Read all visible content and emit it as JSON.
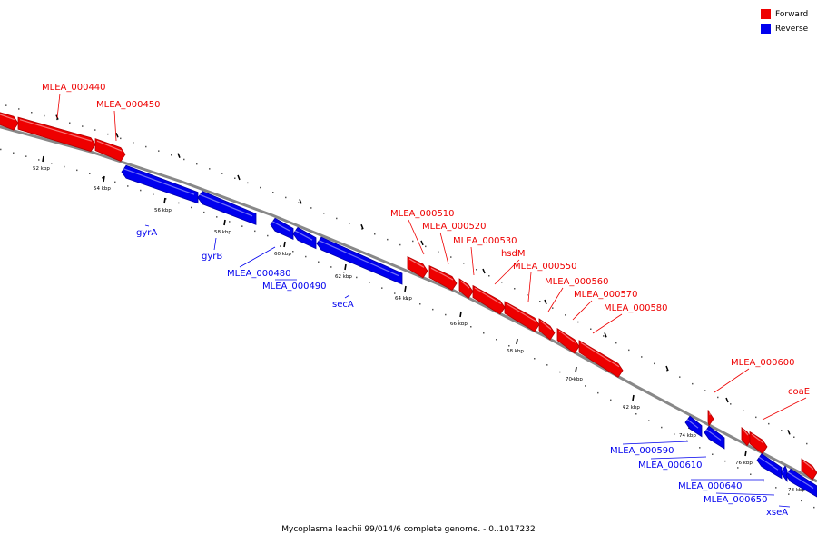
{
  "legend": {
    "forward_label": "Forward",
    "reverse_label": "Reverse",
    "forward_color": "#ee0000",
    "reverse_color": "#0000ee"
  },
  "caption": "Mycoplasma leachii 99/014/6 complete genome. - 0..1017232",
  "colors": {
    "backbone": "#888888",
    "forward": "#ee0000",
    "forward_dark": "#b30000",
    "reverse": "#0000ee",
    "reverse_dark": "#0000a8"
  },
  "scale_ticks": [
    "52 kbp",
    "54 kbp",
    "56 kbp",
    "58 kbp",
    "60 kbp",
    "62 kbp",
    "64 kbp",
    "66 kbp",
    "68 kbp",
    "70 kbp",
    "72 kbp",
    "74 kbp",
    "76 kbp",
    "78 kbp"
  ],
  "forward_genes": [
    {
      "id": "f0",
      "label": ""
    },
    {
      "id": "f1",
      "label": "MLEA_000440"
    },
    {
      "id": "f2",
      "label": "MLEA_000450"
    },
    {
      "id": "f3",
      "label": "MLEA_000510"
    },
    {
      "id": "f4",
      "label": "MLEA_000520"
    },
    {
      "id": "f5",
      "label": "MLEA_000530"
    },
    {
      "id": "f6",
      "label": "hsdM"
    },
    {
      "id": "f7",
      "label": "MLEA_000550"
    },
    {
      "id": "f8",
      "label": "MLEA_000560"
    },
    {
      "id": "f9",
      "label": "MLEA_000570"
    },
    {
      "id": "f10",
      "label": "MLEA_000580"
    },
    {
      "id": "f11",
      "label": "MLEA_000600"
    },
    {
      "id": "f12",
      "label": ""
    },
    {
      "id": "f13",
      "label": "coaE"
    },
    {
      "id": "f14",
      "label": ""
    }
  ],
  "reverse_genes": [
    {
      "id": "r1",
      "label": "gyrA"
    },
    {
      "id": "r2",
      "label": "gyrB"
    },
    {
      "id": "r3",
      "label": "MLEA_000480"
    },
    {
      "id": "r4",
      "label": "MLEA_000490"
    },
    {
      "id": "r5",
      "label": "secA"
    },
    {
      "id": "r6",
      "label": "MLEA_000590"
    },
    {
      "id": "r7",
      "label": "MLEA_000610"
    },
    {
      "id": "r8",
      "label": "MLEA_000640"
    },
    {
      "id": "r9",
      "label": "MLEA_000650"
    },
    {
      "id": "r10",
      "label": "xseA"
    }
  ]
}
